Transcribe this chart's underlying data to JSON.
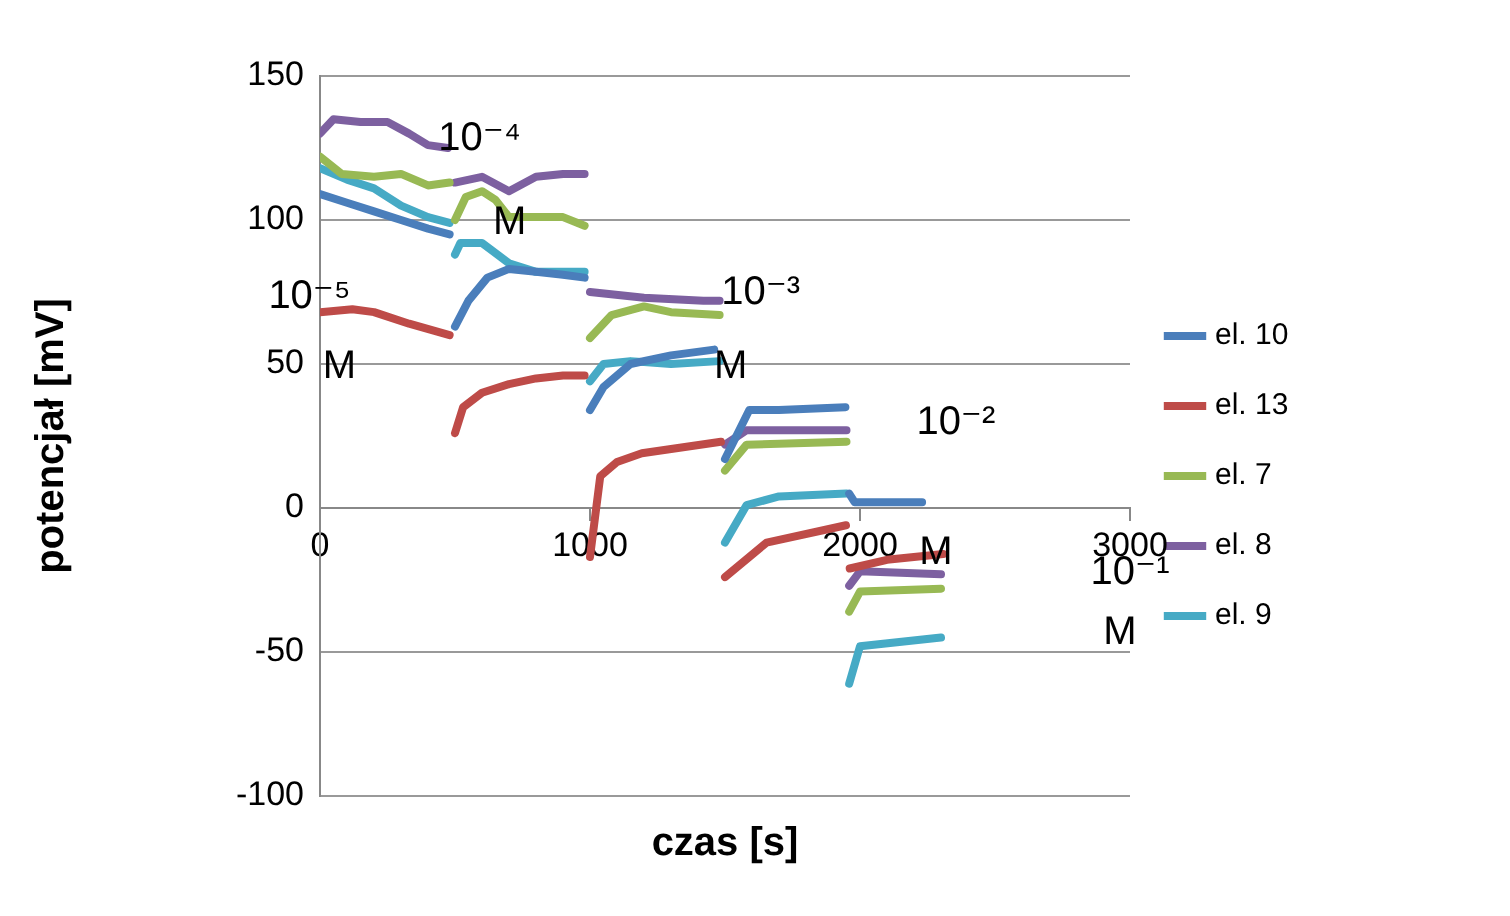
{
  "chart_data": {
    "type": "line",
    "xlabel": "czas [s]",
    "ylabel": "potencjał [mV]",
    "xlim": [
      0,
      3000
    ],
    "xticks": [
      0,
      1000,
      2000,
      3000
    ],
    "ylim": [
      -100,
      150
    ],
    "yticks": [
      -100,
      -50,
      0,
      50,
      100,
      150
    ],
    "grid": "y",
    "legend": "right",
    "marker": "none",
    "line_style": "solid",
    "series": [
      {
        "name": "el. 10",
        "color": "#4a7ebb",
        "x": [
          0,
          100,
          200,
          300,
          400,
          480,
          490,
          500,
          550,
          620,
          700,
          800,
          900,
          980,
          990,
          1000,
          1050,
          1150,
          1300,
          1460,
          1470,
          1500,
          1590,
          1700,
          1946,
          1955,
          1960,
          1980,
          2230
        ],
        "values": [
          109,
          106,
          103,
          100,
          97,
          95,
          null,
          63,
          72,
          80,
          83,
          82,
          81,
          80,
          null,
          34,
          42,
          50,
          53,
          55,
          null,
          17,
          34,
          34,
          35,
          null,
          5,
          2,
          2
        ]
      },
      {
        "name": "el. 13",
        "color": "#be4b48",
        "x": [
          0,
          120,
          200,
          330,
          480,
          490,
          500,
          530,
          600,
          700,
          800,
          900,
          980,
          990,
          1000,
          1038,
          1100,
          1192,
          1485,
          1492,
          1500,
          1654,
          1948,
          1955,
          1962,
          2100,
          2308
        ],
        "values": [
          68,
          69,
          68,
          64,
          60,
          null,
          26,
          35,
          40,
          43,
          45,
          46,
          46,
          null,
          -17,
          11,
          16,
          19,
          23,
          null,
          -24,
          -12,
          -6,
          null,
          -21,
          -18,
          -16
        ]
      },
      {
        "name": "el. 7",
        "color": "#98b954",
        "x": [
          0,
          80,
          200,
          300,
          400,
          480,
          490,
          500,
          540,
          600,
          650,
          700,
          800,
          900,
          980,
          990,
          1000,
          1080,
          1200,
          1300,
          1480,
          1490,
          1500,
          1580,
          1950,
          1955,
          1960,
          2000,
          2300
        ],
        "values": [
          122,
          116,
          115,
          116,
          112,
          113,
          null,
          100,
          108,
          110,
          107,
          101,
          101,
          101,
          98,
          null,
          59,
          67,
          70,
          68,
          67,
          null,
          13,
          22,
          23,
          null,
          -36,
          -29,
          -28
        ]
      },
      {
        "name": "el. 8",
        "color": "#7d60a0",
        "x": [
          0,
          50,
          150,
          250,
          330,
          400,
          474,
          490,
          500,
          600,
          700,
          800,
          900,
          980,
          990,
          1000,
          1200,
          1420,
          1480,
          1490,
          1500,
          1580,
          1950,
          1955,
          1960,
          2000,
          2300
        ],
        "values": [
          130,
          135,
          134,
          134,
          130,
          126,
          125,
          null,
          113,
          115,
          110,
          115,
          116,
          116,
          null,
          75,
          73,
          72,
          72,
          null,
          22,
          27,
          27,
          null,
          -27,
          -22,
          -23
        ]
      },
      {
        "name": "el. 9",
        "color": "#46aac5",
        "x": [
          0,
          100,
          200,
          300,
          400,
          480,
          490,
          500,
          520,
          600,
          700,
          800,
          900,
          980,
          990,
          1000,
          1050,
          1150,
          1300,
          1480,
          1490,
          1500,
          1580,
          1700,
          1950,
          1955,
          1960,
          2000,
          2300
        ],
        "values": [
          118,
          114,
          111,
          105,
          101,
          99,
          null,
          88,
          92,
          92,
          85,
          82,
          82,
          82,
          null,
          44,
          50,
          51,
          50,
          51,
          null,
          -12,
          1,
          4,
          5,
          null,
          -61,
          -48,
          -45
        ]
      }
    ],
    "annotations": [
      "10⁻⁵ M",
      "10⁻⁴ M",
      "10⁻³ M",
      "10⁻² M",
      "10⁻¹ M"
    ]
  }
}
